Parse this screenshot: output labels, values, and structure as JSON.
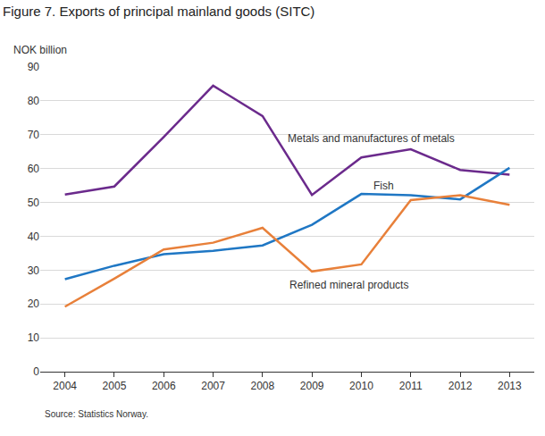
{
  "chart_data": {
    "type": "line",
    "title": "Figure 7. Exports of principal mainland goods (SITC)",
    "y_label": "NOK billion",
    "source": "Source: Statistics Norway.",
    "categories": [
      "2004",
      "2005",
      "2006",
      "2007",
      "2008",
      "2009",
      "2010",
      "2011",
      "2012",
      "2013"
    ],
    "series": [
      {
        "name": "Metals and manufactures of metals",
        "color": "#6b2a8c",
        "values": [
          52.3,
          54.7,
          69.3,
          84.5,
          75.5,
          52.2,
          63.3,
          65.7,
          59.6,
          58.2
        ]
      },
      {
        "name": "Fish",
        "color": "#1f77c4",
        "values": [
          27.3,
          31.3,
          34.7,
          35.7,
          37.3,
          43.4,
          52.5,
          52.1,
          50.9,
          60.2
        ]
      },
      {
        "name": "Refined mineral products",
        "color": "#e8803a",
        "values": [
          19.2,
          27.5,
          36.1,
          38.1,
          42.5,
          29.6,
          31.7,
          50.7,
          52.1,
          49.3
        ]
      }
    ],
    "ylim": [
      0,
      90
    ],
    "yticks": [
      0,
      10,
      20,
      30,
      40,
      50,
      60,
      70,
      80,
      90
    ],
    "grid": true
  }
}
